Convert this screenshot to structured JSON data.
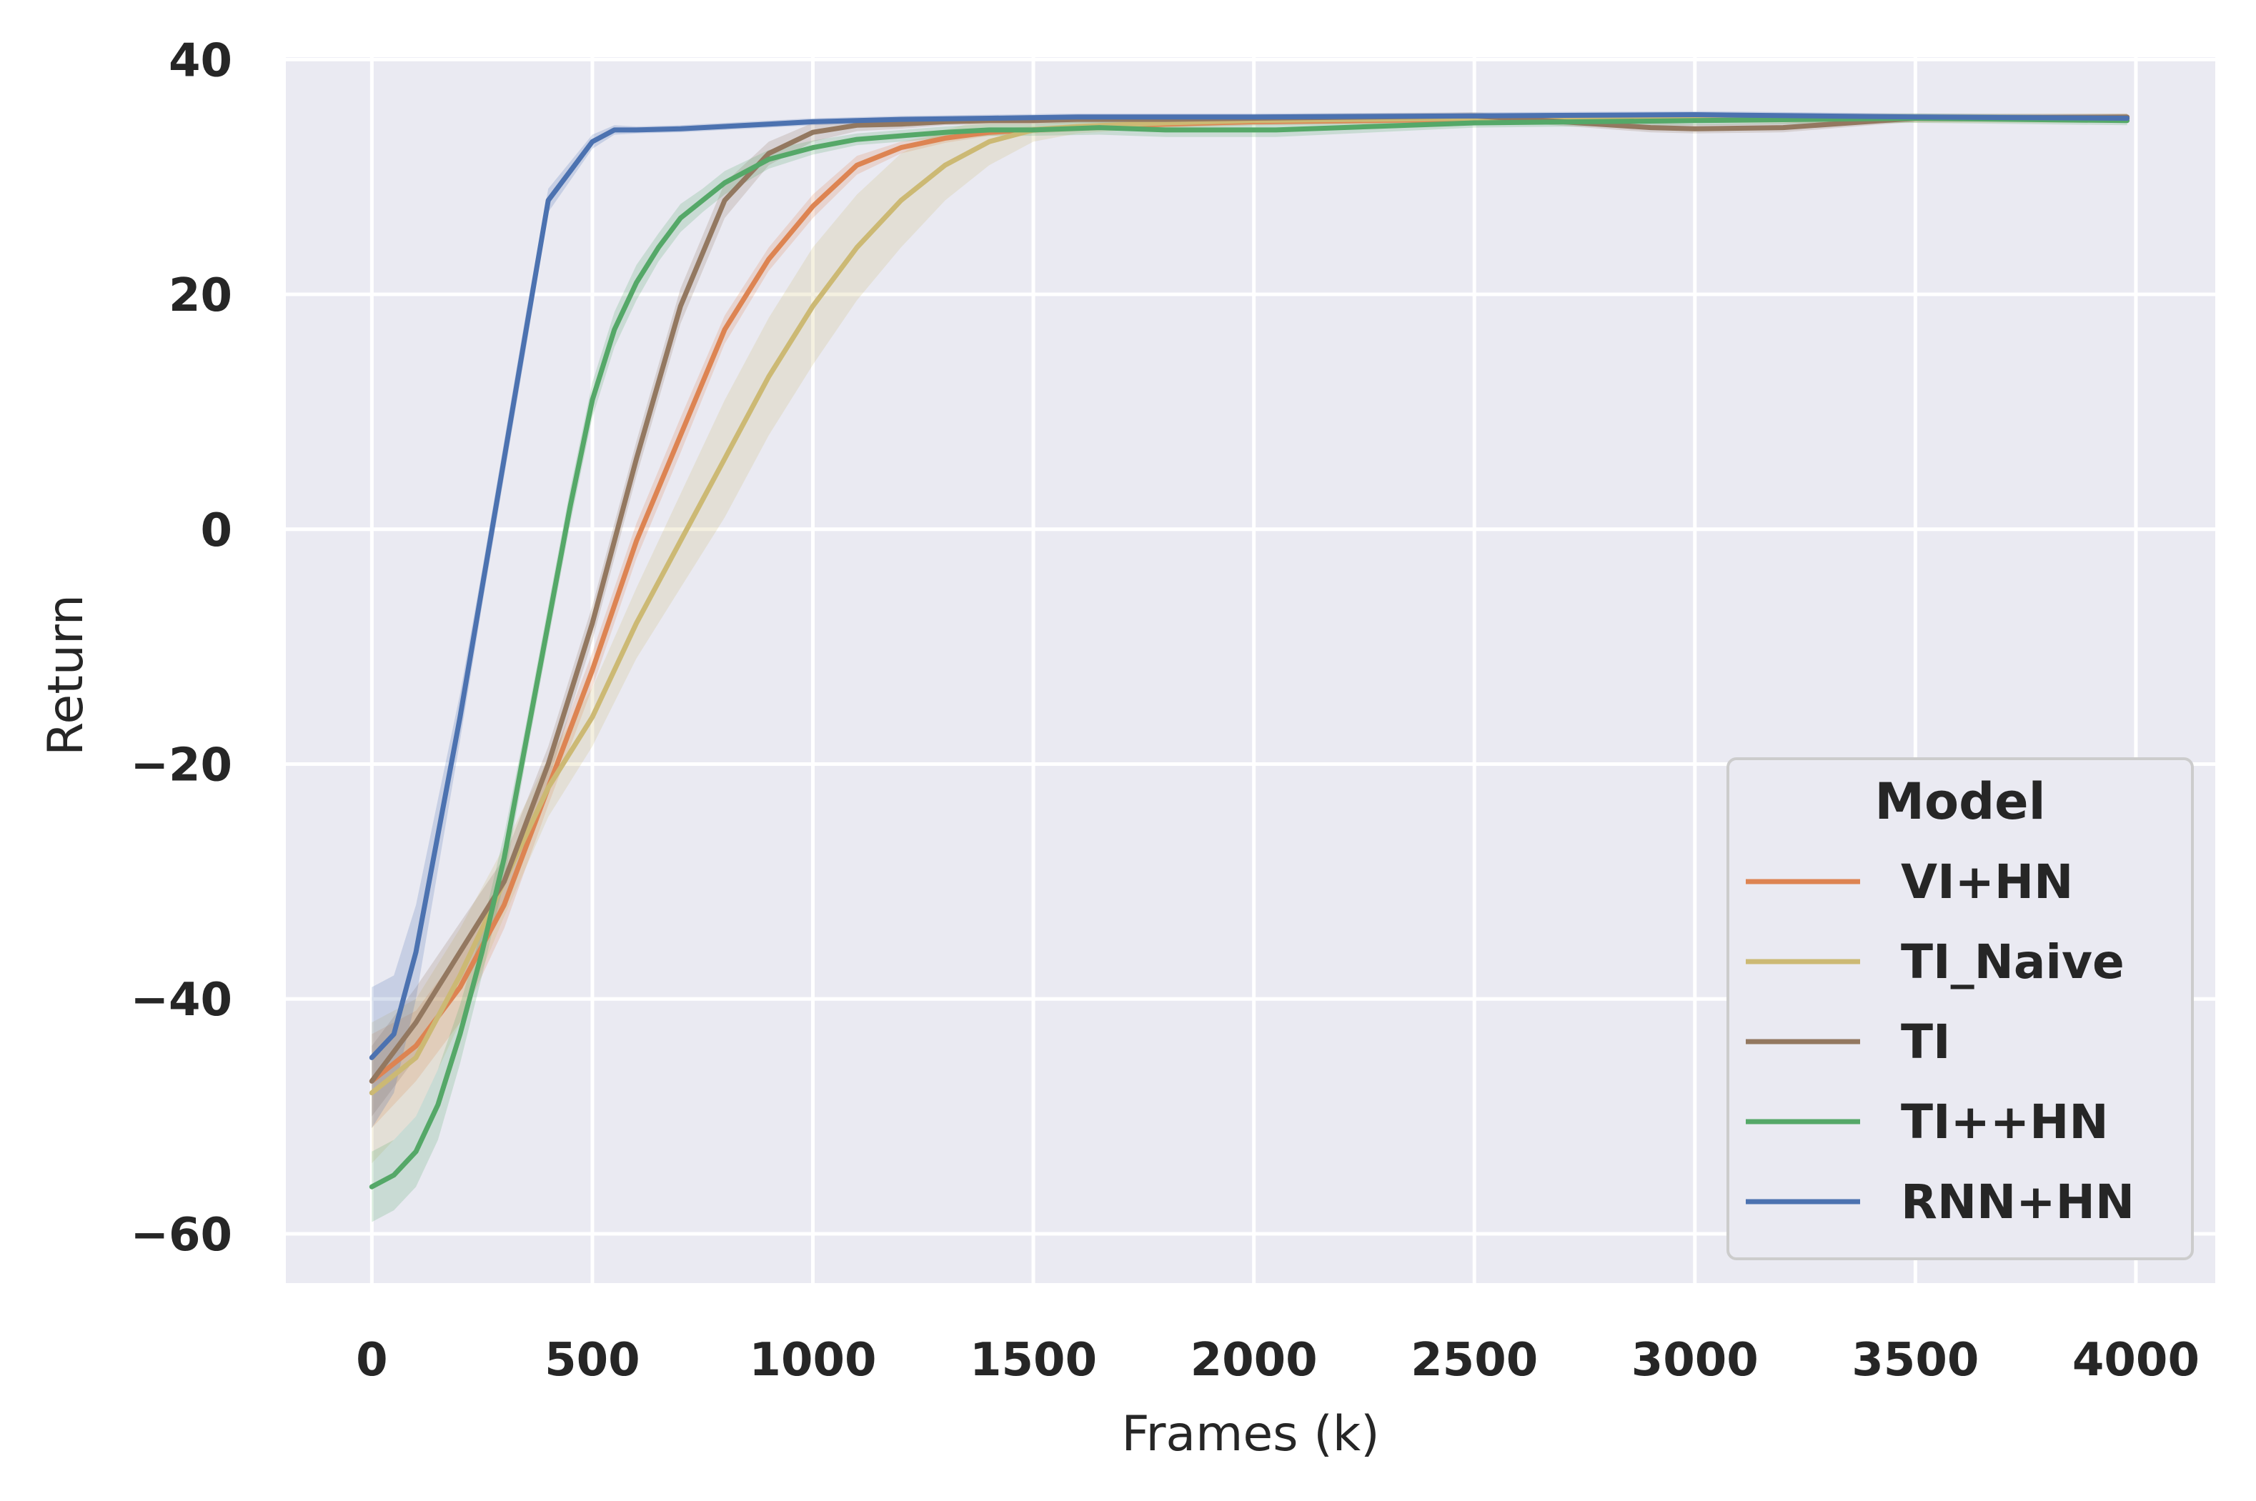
{
  "chart_data": {
    "type": "line",
    "title": "",
    "xlabel": "Frames (k)",
    "ylabel": "Return",
    "xlim": [
      -195,
      4180
    ],
    "ylim": [
      -64.2,
      40.2
    ],
    "xticks": [
      0,
      500,
      1000,
      1500,
      2000,
      2500,
      3000,
      3500,
      4000
    ],
    "xtick_labels": [
      "0",
      "500",
      "1000",
      "1500",
      "2000",
      "2500",
      "3000",
      "3500",
      "4000"
    ],
    "yticks": [
      -60,
      -40,
      -20,
      0,
      20,
      40
    ],
    "ytick_labels": [
      "−60",
      "−40",
      "−20",
      "0",
      "20",
      "40"
    ],
    "grid": true,
    "legend": {
      "title": "Model",
      "position": "lower right"
    },
    "series": [
      {
        "name": "VI+HN",
        "color": "#dd8452",
        "x": [
          0,
          100,
          200,
          300,
          400,
          500,
          600,
          700,
          800,
          900,
          1000,
          1100,
          1200,
          1300,
          1400,
          1500,
          1600,
          1800,
          2000,
          2500,
          3000,
          3500,
          3980
        ],
        "y": [
          -47,
          -44,
          -39,
          -32,
          -22,
          -12,
          -1,
          8,
          17,
          23,
          27.5,
          31,
          32.5,
          33.3,
          33.8,
          34.0,
          34.2,
          34.5,
          34.7,
          34.9,
          35.0,
          35.0,
          35.0
        ],
        "band": [
          4,
          3,
          3,
          2,
          1.5,
          1.5,
          1.5,
          1.5,
          1.2,
          1,
          1,
          0.8,
          0.5,
          0.4,
          0.3,
          0.3,
          0.3,
          0.3,
          0.3,
          0.3,
          0.3,
          0.3,
          0.3
        ]
      },
      {
        "name": "TI_Naive",
        "color": "#ccb974",
        "x": [
          0,
          100,
          200,
          300,
          400,
          500,
          600,
          700,
          800,
          900,
          1000,
          1100,
          1200,
          1300,
          1400,
          1500,
          1600,
          1800,
          2000,
          2500,
          3000,
          3500,
          3980
        ],
        "y": [
          -48,
          -45,
          -38,
          -30,
          -22,
          -16,
          -8,
          -1,
          6,
          13,
          19,
          24,
          28,
          31,
          33,
          34,
          34.3,
          34.6,
          34.8,
          35.0,
          35.0,
          35.0,
          35.0
        ],
        "band": [
          6,
          5,
          4,
          3,
          2.5,
          2.5,
          3,
          4,
          5,
          5,
          5,
          4.5,
          4,
          3,
          2,
          1,
          0.6,
          0.4,
          0.4,
          0.4,
          0.4,
          0.4,
          0.4
        ]
      },
      {
        "name": "TI",
        "color": "#937860",
        "x": [
          0,
          100,
          200,
          300,
          400,
          500,
          600,
          700,
          800,
          900,
          1000,
          1100,
          1200,
          1300,
          1400,
          1500,
          1600,
          1800,
          2000,
          2500,
          2900,
          3000,
          3200,
          3500,
          3980
        ],
        "y": [
          -47,
          -42,
          -36,
          -30,
          -20,
          -8,
          6,
          19,
          28,
          32,
          33.8,
          34.4,
          34.5,
          34.7,
          34.8,
          34.8,
          34.9,
          34.9,
          35.0,
          35.2,
          34.2,
          34.1,
          34.2,
          35.0,
          35.1
        ],
        "band": [
          3,
          3,
          2.5,
          2,
          1.5,
          1.5,
          1.5,
          1.5,
          1.5,
          1,
          0.8,
          0.5,
          0.4,
          0.3,
          0.3,
          0.3,
          0.3,
          0.3,
          0.3,
          0.3,
          0.4,
          0.4,
          0.4,
          0.3,
          0.3
        ]
      },
      {
        "name": "TI++HN",
        "color": "#55a868",
        "x": [
          0,
          50,
          100,
          150,
          200,
          250,
          300,
          350,
          400,
          450,
          500,
          550,
          600,
          650,
          700,
          750,
          800,
          900,
          1000,
          1100,
          1200,
          1300,
          1400,
          1500,
          1650,
          1800,
          2050,
          2500,
          3000,
          3500,
          3980
        ],
        "y": [
          -56,
          -55,
          -53,
          -49,
          -43,
          -36,
          -28,
          -18,
          -8,
          2,
          11,
          17,
          21,
          24,
          26.5,
          28,
          29.5,
          31.5,
          32.5,
          33.2,
          33.5,
          33.8,
          34.0,
          34.0,
          34.2,
          34.0,
          34.0,
          34.6,
          34.8,
          35.0,
          34.8
        ],
        "band": [
          3,
          3,
          3,
          3,
          2.5,
          2,
          2,
          1.5,
          1.5,
          1.5,
          1.5,
          1.5,
          1.5,
          1.2,
          1.2,
          1,
          1,
          0.8,
          0.6,
          0.5,
          0.5,
          0.5,
          0.5,
          0.5,
          0.6,
          0.6,
          0.6,
          0.4,
          0.4,
          0.4,
          0.4
        ]
      },
      {
        "name": "RNN+HN",
        "color": "#4c72b0",
        "x": [
          0,
          50,
          100,
          150,
          200,
          250,
          300,
          350,
          400,
          450,
          500,
          550,
          600,
          700,
          800,
          900,
          1000,
          1200,
          1400,
          1600,
          1800,
          2000,
          2500,
          3000,
          3500,
          3980
        ],
        "y": [
          -45,
          -43,
          -36,
          -26,
          -16,
          -5,
          6,
          17,
          28,
          30.5,
          33,
          34,
          34.0,
          34.1,
          34.3,
          34.5,
          34.7,
          34.9,
          35.0,
          35.1,
          35.1,
          35.1,
          35.2,
          35.3,
          35.1,
          35.0
        ],
        "band": [
          6,
          5,
          4,
          3,
          2,
          1.5,
          1.5,
          1.5,
          1,
          0.8,
          0.6,
          0.4,
          0.3,
          0.3,
          0.3,
          0.3,
          0.3,
          0.3,
          0.3,
          0.3,
          0.3,
          0.3,
          0.3,
          0.3,
          0.3,
          0.3
        ]
      }
    ]
  }
}
